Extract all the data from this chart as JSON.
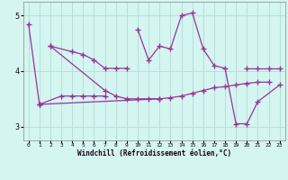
{
  "xlabel": "Windchill (Refroidissement éolien,°C)",
  "background_color": "#d4f5f0",
  "grid_color": "#b0ddd8",
  "line_color": "#993399",
  "xlim": [
    -0.5,
    23.5
  ],
  "ylim": [
    2.75,
    5.25
  ],
  "yticks": [
    3,
    4,
    5
  ],
  "xticks": [
    0,
    1,
    2,
    3,
    4,
    5,
    6,
    7,
    8,
    9,
    10,
    11,
    12,
    13,
    14,
    15,
    16,
    17,
    18,
    19,
    20,
    21,
    22,
    23
  ],
  "lines": [
    {
      "x": [
        0,
        1
      ],
      "y": [
        4.85,
        3.4
      ]
    },
    {
      "x": [
        1,
        3,
        4,
        5,
        6,
        7
      ],
      "y": [
        3.4,
        3.55,
        3.55,
        3.55,
        3.55,
        3.55
      ]
    },
    {
      "x": [
        2,
        4,
        5,
        6,
        7,
        8,
        9
      ],
      "y": [
        4.45,
        4.35,
        4.3,
        4.2,
        4.05,
        4.05,
        4.05
      ]
    },
    {
      "x": [
        2,
        7,
        8,
        9,
        10,
        11,
        12,
        13,
        14,
        15,
        16,
        17,
        18,
        19,
        20,
        21,
        22
      ],
      "y": [
        4.45,
        3.65,
        3.55,
        3.5,
        3.5,
        3.5,
        3.5,
        3.52,
        3.55,
        3.6,
        3.65,
        3.7,
        3.72,
        3.75,
        3.78,
        3.8,
        3.8
      ]
    },
    {
      "x": [
        1,
        12
      ],
      "y": [
        3.4,
        3.5
      ]
    },
    {
      "x": [
        10,
        11,
        12,
        13,
        14,
        15,
        16,
        17,
        18,
        19,
        20,
        21,
        23
      ],
      "y": [
        4.75,
        4.2,
        4.45,
        4.4,
        5.0,
        5.05,
        4.4,
        4.1,
        4.05,
        3.05,
        3.05,
        3.45,
        3.75
      ]
    },
    {
      "x": [
        20,
        21,
        22,
        23
      ],
      "y": [
        4.05,
        4.05,
        4.05,
        4.05
      ]
    }
  ]
}
